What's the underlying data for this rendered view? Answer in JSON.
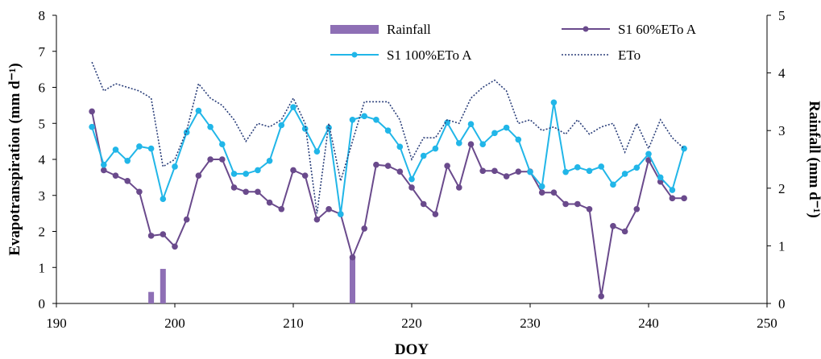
{
  "chart_data": {
    "type": "line",
    "xlabel": "DOY",
    "ylabel_left": "Evapotranspiration (mm d⁻¹)",
    "ylabel_right": "Rainfall (mm d⁻¹)",
    "xlim": [
      190,
      250
    ],
    "x_ticks": [
      190,
      200,
      210,
      220,
      230,
      240,
      250
    ],
    "ylim_left": [
      0,
      8
    ],
    "y_ticks_left": [
      0,
      1,
      2,
      3,
      4,
      5,
      6,
      7,
      8
    ],
    "ylim_right": [
      0,
      5
    ],
    "y_ticks_right": [
      0,
      1,
      2,
      3,
      4,
      5
    ],
    "grid": false,
    "legend_placement": "top",
    "series": [
      {
        "name": "Rainfall",
        "kind": "bar",
        "axis": "right",
        "color": "#8e6fb5",
        "x": [
          198,
          199,
          215
        ],
        "values": [
          0.2,
          0.6,
          0.8
        ]
      },
      {
        "name": "S1 60%ETo A",
        "kind": "line-marker",
        "axis": "left",
        "color": "#6a4a8c",
        "x": [
          193,
          194,
          195,
          196,
          197,
          198,
          199,
          200,
          201,
          202,
          203,
          204,
          205,
          206,
          207,
          208,
          209,
          210,
          211,
          212,
          213,
          214,
          215,
          216,
          217,
          218,
          219,
          220,
          221,
          222,
          223,
          224,
          225,
          226,
          227,
          228,
          229,
          230,
          231,
          232,
          233,
          234,
          235,
          236,
          237,
          238,
          239,
          240,
          241,
          242,
          243
        ],
        "values": [
          5.33,
          3.7,
          3.55,
          3.4,
          3.1,
          1.88,
          1.92,
          1.58,
          2.33,
          3.55,
          4.0,
          4.0,
          3.22,
          3.1,
          3.1,
          2.8,
          2.62,
          3.7,
          3.55,
          2.33,
          2.62,
          2.48,
          1.28,
          2.08,
          3.85,
          3.82,
          3.66,
          3.22,
          2.76,
          2.48,
          3.82,
          3.22,
          4.42,
          3.68,
          3.68,
          3.53,
          3.66,
          3.66,
          3.08,
          3.08,
          2.76,
          2.76,
          2.62,
          0.2,
          2.15,
          2.0,
          2.62,
          3.98,
          3.38,
          2.92,
          2.92
        ]
      },
      {
        "name": "S1 100%ETo A",
        "kind": "line-marker",
        "axis": "left",
        "color": "#21b6e8",
        "x": [
          193,
          194,
          195,
          196,
          197,
          198,
          199,
          200,
          201,
          202,
          203,
          204,
          205,
          206,
          207,
          208,
          209,
          210,
          211,
          212,
          213,
          214,
          215,
          216,
          217,
          218,
          219,
          220,
          221,
          222,
          223,
          224,
          225,
          226,
          227,
          228,
          229,
          230,
          231,
          232,
          233,
          234,
          235,
          236,
          237,
          238,
          239,
          240,
          241,
          242,
          243
        ],
        "values": [
          4.9,
          3.85,
          4.27,
          3.96,
          4.36,
          4.3,
          2.9,
          3.8,
          4.75,
          5.35,
          4.9,
          4.42,
          3.6,
          3.6,
          3.7,
          3.96,
          4.95,
          5.45,
          4.85,
          4.22,
          4.88,
          2.48,
          5.1,
          5.2,
          5.1,
          4.8,
          4.35,
          3.45,
          4.1,
          4.3,
          5.02,
          4.45,
          4.98,
          4.42,
          4.73,
          4.88,
          4.55,
          3.65,
          3.25,
          5.58,
          3.65,
          3.78,
          3.68,
          3.8,
          3.3,
          3.6,
          3.77,
          4.15,
          3.5,
          3.15,
          4.3
        ]
      },
      {
        "name": "ETo",
        "kind": "dotted-line",
        "axis": "left",
        "color": "#2b3f7a",
        "x": [
          193,
          194,
          195,
          196,
          197,
          198,
          199,
          200,
          201,
          202,
          203,
          204,
          205,
          206,
          207,
          208,
          209,
          210,
          211,
          212,
          213,
          214,
          215,
          216,
          217,
          218,
          219,
          220,
          221,
          222,
          223,
          224,
          225,
          226,
          227,
          228,
          229,
          230,
          231,
          232,
          233,
          234,
          235,
          236,
          237,
          238,
          239,
          240,
          241,
          242,
          243
        ],
        "values": [
          6.7,
          5.9,
          6.1,
          6.0,
          5.9,
          5.7,
          3.8,
          4.0,
          4.8,
          6.1,
          5.7,
          5.5,
          5.1,
          4.5,
          5.0,
          4.9,
          5.1,
          5.7,
          5.0,
          2.5,
          5.0,
          3.4,
          4.5,
          5.6,
          5.6,
          5.6,
          5.1,
          4.0,
          4.6,
          4.6,
          5.1,
          5.0,
          5.7,
          6.0,
          6.2,
          5.9,
          5.0,
          5.1,
          4.8,
          4.9,
          4.7,
          5.1,
          4.7,
          4.9,
          5.0,
          4.2,
          5.0,
          4.3,
          5.1,
          4.6,
          4.3
        ]
      }
    ]
  }
}
